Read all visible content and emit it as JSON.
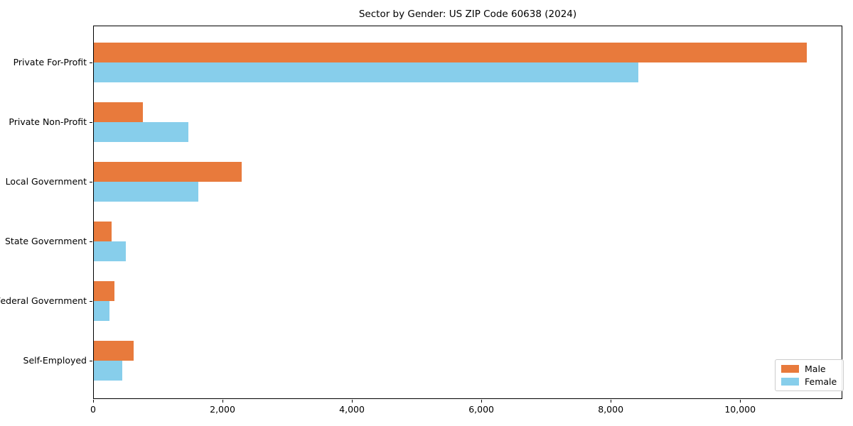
{
  "chart_data": {
    "type": "bar",
    "orientation": "horizontal",
    "title": "Sector by Gender: US ZIP Code 60638 (2024)",
    "categories": [
      "Private For-Profit",
      "Private Non-Profit",
      "Local Government",
      "State Government",
      "Federal Government",
      "Self-Employed"
    ],
    "series": [
      {
        "name": "Male",
        "color": "#e87a3c",
        "values": [
          11030,
          770,
          2300,
          290,
          330,
          630
        ]
      },
      {
        "name": "Female",
        "color": "#87ceeb",
        "values": [
          8430,
          1470,
          1630,
          500,
          250,
          450
        ]
      }
    ],
    "xlabel": "",
    "ylabel": "",
    "xlim": [
      0,
      11580
    ],
    "xticks": [
      0,
      2000,
      4000,
      6000,
      8000,
      10000
    ],
    "xtick_labels": [
      "0",
      "2,000",
      "4,000",
      "6,000",
      "8,000",
      "10,000"
    ],
    "grid": false,
    "legend": {
      "position": "lower right",
      "labels": [
        "Male",
        "Female"
      ]
    }
  }
}
